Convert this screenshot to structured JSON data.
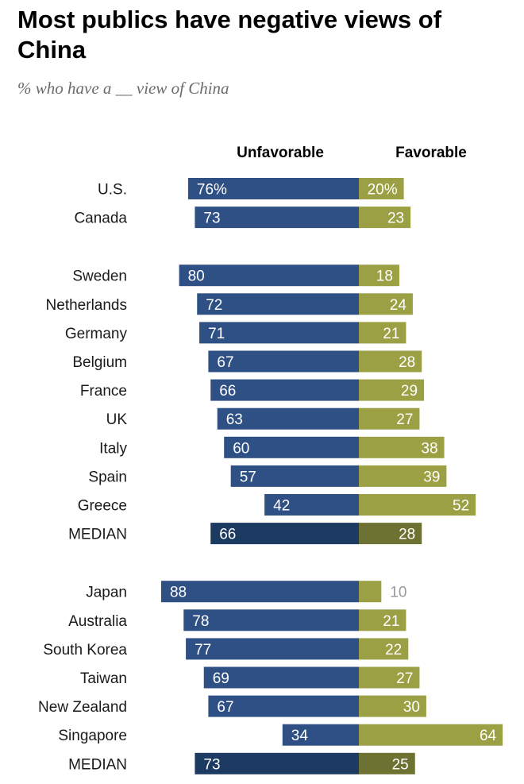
{
  "title": "Most publics have negative views of China",
  "subtitle": "% who have a __ view of China",
  "colors": {
    "unfavorable": "#2f5085",
    "favorable": "#9aa043",
    "median_unfavorable": "#1d3a63",
    "median_favorable": "#6d7233",
    "label_light": "#ffffff",
    "label_outside": "#9a9a9a"
  },
  "chart_data": {
    "type": "bar",
    "orientation": "horizontal-diverging",
    "series": [
      {
        "name": "Unfavorable"
      },
      {
        "name": "Favorable"
      }
    ],
    "groups": [
      {
        "rows": [
          {
            "category": "U.S.",
            "unfavorable": 76,
            "favorable": 20,
            "unfavorable_label": "76%",
            "favorable_label": "20%"
          },
          {
            "category": "Canada",
            "unfavorable": 73,
            "favorable": 23,
            "unfavorable_label": "73",
            "favorable_label": "23"
          }
        ]
      },
      {
        "rows": [
          {
            "category": "Sweden",
            "unfavorable": 80,
            "favorable": 18,
            "unfavorable_label": "80",
            "favorable_label": "18"
          },
          {
            "category": "Netherlands",
            "unfavorable": 72,
            "favorable": 24,
            "unfavorable_label": "72",
            "favorable_label": "24"
          },
          {
            "category": "Germany",
            "unfavorable": 71,
            "favorable": 21,
            "unfavorable_label": "71",
            "favorable_label": "21"
          },
          {
            "category": "Belgium",
            "unfavorable": 67,
            "favorable": 28,
            "unfavorable_label": "67",
            "favorable_label": "28"
          },
          {
            "category": "France",
            "unfavorable": 66,
            "favorable": 29,
            "unfavorable_label": "66",
            "favorable_label": "29"
          },
          {
            "category": "UK",
            "unfavorable": 63,
            "favorable": 27,
            "unfavorable_label": "63",
            "favorable_label": "27"
          },
          {
            "category": "Italy",
            "unfavorable": 60,
            "favorable": 38,
            "unfavorable_label": "60",
            "favorable_label": "38"
          },
          {
            "category": "Spain",
            "unfavorable": 57,
            "favorable": 39,
            "unfavorable_label": "57",
            "favorable_label": "39"
          },
          {
            "category": "Greece",
            "unfavorable": 42,
            "favorable": 52,
            "unfavorable_label": "42",
            "favorable_label": "52"
          },
          {
            "category": "MEDIAN",
            "unfavorable": 66,
            "favorable": 28,
            "unfavorable_label": "66",
            "favorable_label": "28",
            "median": true
          }
        ]
      },
      {
        "rows": [
          {
            "category": "Japan",
            "unfavorable": 88,
            "favorable": 10,
            "unfavorable_label": "88",
            "favorable_label": "10",
            "favorable_label_outside": true
          },
          {
            "category": "Australia",
            "unfavorable": 78,
            "favorable": 21,
            "unfavorable_label": "78",
            "favorable_label": "21"
          },
          {
            "category": "South Korea",
            "unfavorable": 77,
            "favorable": 22,
            "unfavorable_label": "77",
            "favorable_label": "22"
          },
          {
            "category": "Taiwan",
            "unfavorable": 69,
            "favorable": 27,
            "unfavorable_label": "69",
            "favorable_label": "27"
          },
          {
            "category": "New Zealand",
            "unfavorable": 67,
            "favorable": 30,
            "unfavorable_label": "67",
            "favorable_label": "30"
          },
          {
            "category": "Singapore",
            "unfavorable": 34,
            "favorable": 64,
            "unfavorable_label": "34",
            "favorable_label": "64"
          },
          {
            "category": "MEDIAN",
            "unfavorable": 73,
            "favorable": 25,
            "unfavorable_label": "73",
            "favorable_label": "25",
            "median": true
          }
        ]
      }
    ]
  }
}
